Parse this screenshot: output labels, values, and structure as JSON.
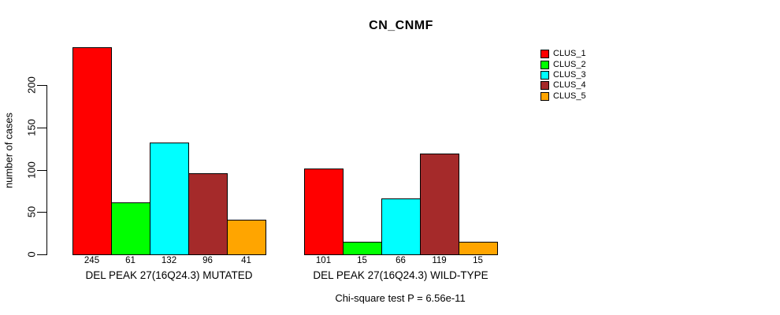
{
  "chart_data": {
    "type": "bar",
    "title": "CN_CNMF",
    "xlabel": "",
    "ylabel": "number of cases",
    "ylim": [
      0,
      245
    ],
    "yticks": [
      0,
      50,
      100,
      150,
      200
    ],
    "grid": false,
    "legend_position": "top-right",
    "categories": [
      "DEL PEAK 27(16Q24.3) MUTATED",
      "DEL PEAK 27(16Q24.3) WILD-TYPE"
    ],
    "series": [
      {
        "name": "CLUS_1",
        "color": "#ff0000",
        "values": [
          245,
          101
        ]
      },
      {
        "name": "CLUS_2",
        "color": "#00ff00",
        "values": [
          61,
          15
        ]
      },
      {
        "name": "CLUS_3",
        "color": "#00ffff",
        "values": [
          132,
          66
        ]
      },
      {
        "name": "CLUS_4",
        "color": "#a52a2a",
        "values": [
          96,
          119
        ]
      },
      {
        "name": "CLUS_5",
        "color": "#ffa500",
        "values": [
          41,
          15
        ]
      }
    ],
    "bar_value_labels": [
      [
        245,
        61,
        132,
        96,
        41
      ],
      [
        101,
        15,
        66,
        119,
        15
      ]
    ],
    "annotation": "Chi-square test P = 6.56e-11"
  },
  "colors": {
    "axis": "#000000",
    "background": "#ffffff",
    "bar_border": "#000000"
  }
}
